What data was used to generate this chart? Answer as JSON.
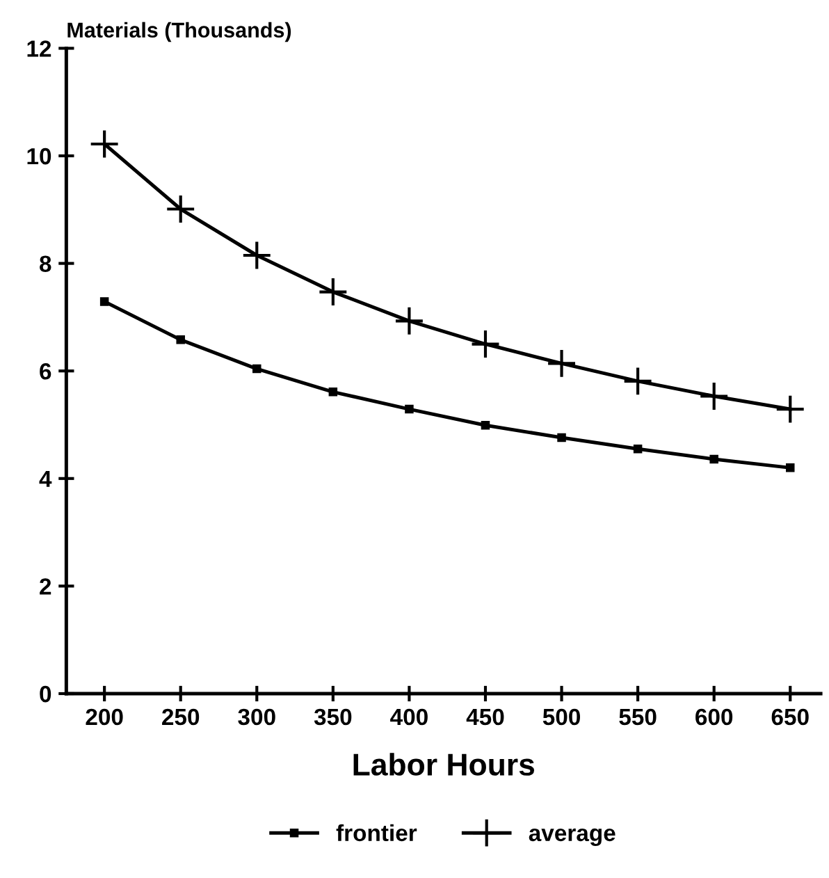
{
  "chart_data": {
    "type": "line",
    "ylabel": "Materials (Thousands)",
    "xlabel": "Labor Hours",
    "x": [
      200,
      250,
      300,
      350,
      400,
      450,
      500,
      550,
      600,
      650
    ],
    "series": [
      {
        "name": "frontier",
        "color": "#000000",
        "marker": "square",
        "values": [
          7.29,
          6.58,
          6.04,
          5.61,
          5.29,
          4.99,
          4.76,
          4.55,
          4.36,
          4.2
        ]
      },
      {
        "name": "average",
        "color": "#000000",
        "marker": "cross",
        "values": [
          10.22,
          9.01,
          8.15,
          7.47,
          6.93,
          6.5,
          6.14,
          5.81,
          5.53,
          5.29
        ]
      }
    ],
    "xlim": [
      175,
      670
    ],
    "xticks": [
      200,
      250,
      300,
      350,
      400,
      450,
      500,
      550,
      600,
      650
    ],
    "ylim": [
      0,
      12
    ],
    "yticks": [
      0,
      2,
      4,
      6,
      8,
      10,
      12
    ],
    "grid": false,
    "legend": "bottom",
    "line_style": "solid"
  }
}
